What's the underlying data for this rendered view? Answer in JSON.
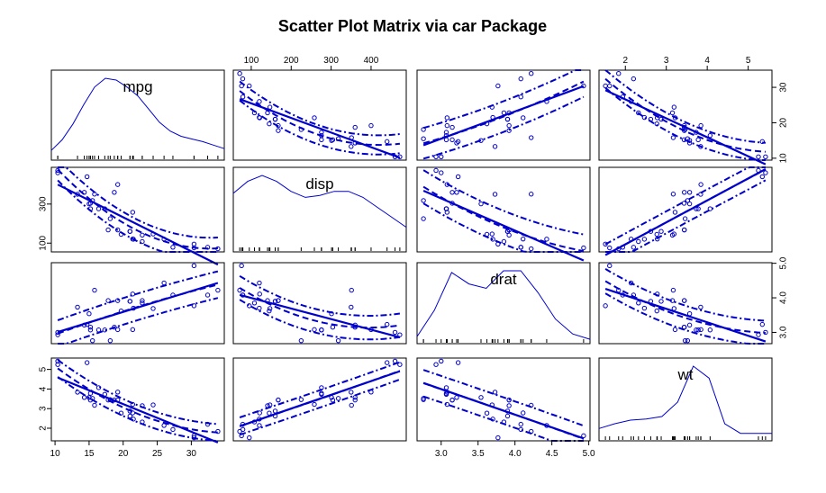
{
  "title": "Scatter Plot Matrix via car Package",
  "colors": {
    "series": "#0000cc",
    "frame": "#000000"
  },
  "chart_data": {
    "type": "scatter",
    "title": "Scatter Plot Matrix via car Package",
    "variables": [
      {
        "name": "mpg",
        "range": [
          10.4,
          33.9
        ],
        "ticks": [
          10,
          15,
          20,
          25,
          30
        ],
        "density": [
          0.008,
          0.02,
          0.038,
          0.06,
          0.08,
          0.09,
          0.088,
          0.08,
          0.07,
          0.055,
          0.04,
          0.03,
          0.024,
          0.021,
          0.018,
          0.014,
          0.01
        ]
      },
      {
        "name": "disp",
        "range": [
          71.1,
          472
        ],
        "ticks": [
          100,
          200,
          300,
          400
        ],
        "density": [
          0.0028,
          0.0034,
          0.0037,
          0.0034,
          0.0029,
          0.0026,
          0.0027,
          0.0029,
          0.0029,
          0.0026,
          0.0021,
          0.0016,
          0.0011
        ]
      },
      {
        "name": "drat",
        "range": [
          2.76,
          4.93
        ],
        "ticks": [
          3.0,
          3.5,
          4.0,
          4.5,
          5.0
        ],
        "density": [
          0.05,
          0.35,
          0.78,
          0.65,
          0.6,
          0.8,
          0.8,
          0.55,
          0.25,
          0.08,
          0.02
        ]
      },
      {
        "name": "wt",
        "range": [
          1.513,
          5.424
        ],
        "ticks": [
          2,
          3,
          4,
          5
        ],
        "density": [
          0.08,
          0.12,
          0.15,
          0.16,
          0.18,
          0.3,
          0.6,
          0.5,
          0.12,
          0.04,
          0.04,
          0.04
        ]
      }
    ],
    "points": [
      [
        21.0,
        160,
        3.9,
        2.62
      ],
      [
        21.0,
        160,
        3.9,
        2.875
      ],
      [
        22.8,
        108,
        3.85,
        2.32
      ],
      [
        21.4,
        258,
        3.08,
        3.215
      ],
      [
        18.7,
        360,
        3.15,
        3.44
      ],
      [
        18.1,
        225,
        2.76,
        3.46
      ],
      [
        14.3,
        360,
        3.21,
        3.57
      ],
      [
        24.4,
        146.7,
        3.69,
        3.19
      ],
      [
        22.8,
        140.8,
        3.92,
        3.15
      ],
      [
        19.2,
        167.6,
        3.92,
        3.44
      ],
      [
        17.8,
        167.6,
        3.92,
        3.44
      ],
      [
        16.4,
        275.8,
        3.07,
        4.07
      ],
      [
        17.3,
        275.8,
        3.07,
        3.73
      ],
      [
        15.2,
        275.8,
        3.07,
        3.78
      ],
      [
        10.4,
        472,
        2.93,
        5.25
      ],
      [
        10.4,
        460,
        3.0,
        5.424
      ],
      [
        14.7,
        440,
        3.23,
        5.345
      ],
      [
        32.4,
        78.7,
        4.08,
        2.2
      ],
      [
        30.4,
        75.7,
        4.93,
        1.615
      ],
      [
        33.9,
        71.1,
        4.22,
        1.835
      ],
      [
        21.5,
        120.1,
        3.7,
        2.465
      ],
      [
        15.5,
        318,
        2.76,
        3.52
      ],
      [
        15.2,
        304,
        3.15,
        3.435
      ],
      [
        13.3,
        350,
        3.73,
        3.84
      ],
      [
        19.2,
        400,
        3.08,
        3.845
      ],
      [
        27.3,
        79,
        4.08,
        1.935
      ],
      [
        26.0,
        120.3,
        4.43,
        2.14
      ],
      [
        30.4,
        95.1,
        3.77,
        1.513
      ],
      [
        15.8,
        351,
        4.22,
        3.17
      ],
      [
        19.7,
        145,
        3.62,
        2.77
      ],
      [
        15.0,
        301,
        3.54,
        3.57
      ],
      [
        21.4,
        121,
        4.11,
        2.78
      ]
    ],
    "smoother_spread": 1.0
  }
}
